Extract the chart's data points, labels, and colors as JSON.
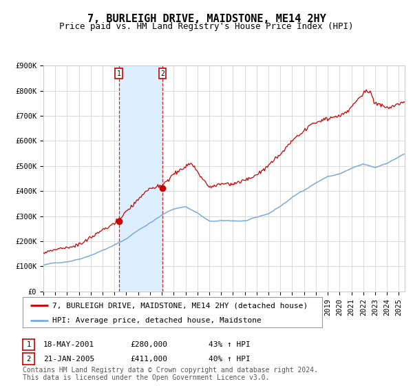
{
  "title": "7, BURLEIGH DRIVE, MAIDSTONE, ME14 2HY",
  "subtitle": "Price paid vs. HM Land Registry's House Price Index (HPI)",
  "ylim": [
    0,
    900000
  ],
  "xlim_start": 1995.0,
  "xlim_end": 2025.5,
  "yticks": [
    0,
    100000,
    200000,
    300000,
    400000,
    500000,
    600000,
    700000,
    800000,
    900000
  ],
  "ytick_labels": [
    "£0",
    "£100K",
    "£200K",
    "£300K",
    "£400K",
    "£500K",
    "£600K",
    "£700K",
    "£800K",
    "£900K"
  ],
  "transaction1_date": 2001.38,
  "transaction1_price": 280000,
  "transaction2_date": 2005.05,
  "transaction2_price": 411000,
  "transaction1_label": "18-MAY-2001",
  "transaction1_price_label": "£280,000",
  "transaction1_hpi_label": "43% ↑ HPI",
  "transaction2_label": "21-JAN-2005",
  "transaction2_price_label": "£411,000",
  "transaction2_hpi_label": "40% ↑ HPI",
  "legend_red_label": "7, BURLEIGH DRIVE, MAIDSTONE, ME14 2HY (detached house)",
  "legend_blue_label": "HPI: Average price, detached house, Maidstone",
  "footer": "Contains HM Land Registry data © Crown copyright and database right 2024.\nThis data is licensed under the Open Government Licence v3.0.",
  "red_color": "#cc0000",
  "blue_color": "#7aaadd",
  "shading_color": "#ddeeff",
  "background_color": "#ffffff",
  "grid_color": "#cccccc",
  "title_fontsize": 11,
  "subtitle_fontsize": 9,
  "tick_fontsize": 7.5,
  "legend_fontsize": 8,
  "footer_fontsize": 7
}
